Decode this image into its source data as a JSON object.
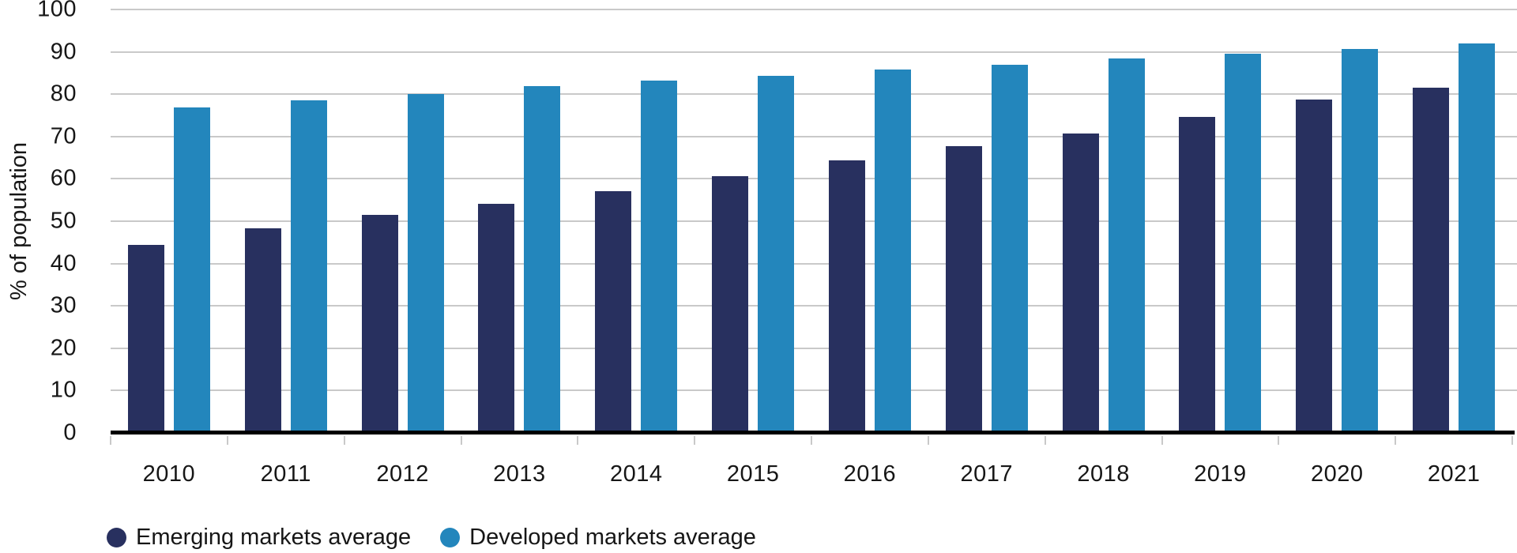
{
  "chart_data": {
    "type": "bar",
    "title": "",
    "xlabel": "",
    "ylabel": "% of population",
    "ylim": [
      0,
      100
    ],
    "ytick_step": 10,
    "grid": true,
    "legend_position": "bottom-left",
    "categories": [
      "2010",
      "2011",
      "2012",
      "2013",
      "2014",
      "2015",
      "2016",
      "2017",
      "2018",
      "2019",
      "2020",
      "2021"
    ],
    "series": [
      {
        "name": "Emerging markets average",
        "color": "#28305f",
        "values": [
          44.4,
          48.3,
          51.5,
          54.1,
          57.1,
          60.6,
          64.4,
          67.8,
          70.7,
          74.6,
          78.7,
          81.5
        ]
      },
      {
        "name": "Developed markets average",
        "color": "#2386bc",
        "values": [
          76.9,
          78.5,
          80.0,
          81.9,
          83.2,
          84.3,
          85.8,
          86.9,
          88.4,
          89.6,
          90.7,
          91.9
        ]
      }
    ],
    "colors": {
      "gridline": "#c9c9c9",
      "axis_line": "#000000",
      "tick": "#c9c9c9",
      "text": "#161616",
      "background": "#ffffff"
    }
  }
}
